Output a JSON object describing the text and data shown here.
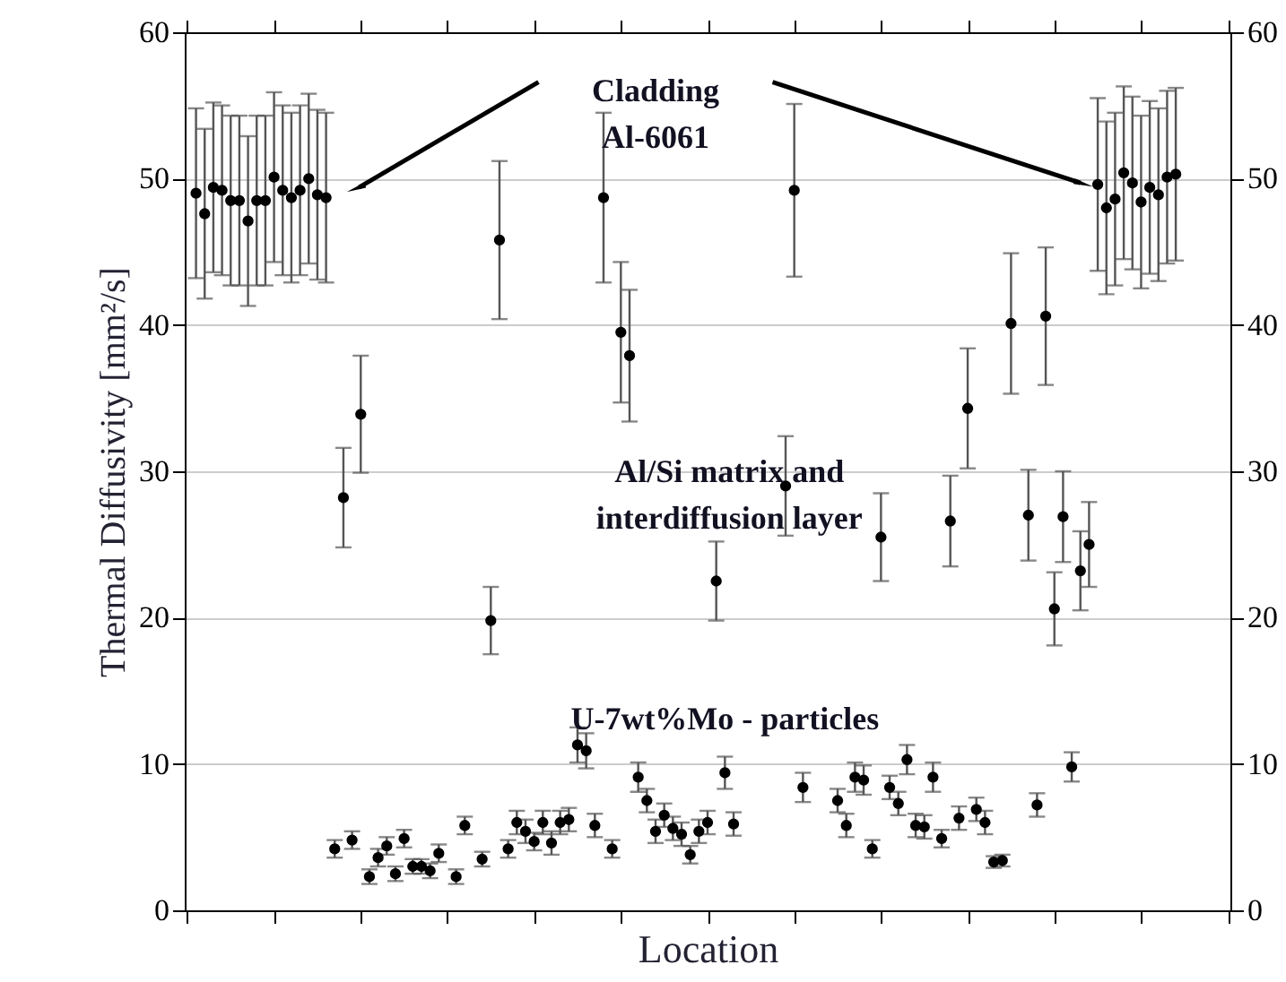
{
  "chart_data": {
    "type": "scatter",
    "xlabel": "Location",
    "ylabel": "Thermal Diffusivity [mm²/s]",
    "categories": [
      null,
      null,
      null,
      null,
      null,
      null,
      null,
      null,
      null,
      null,
      null,
      null,
      null,
      null,
      null,
      null,
      null,
      null,
      null,
      null,
      null,
      null,
      null,
      null,
      null,
      null,
      null,
      null,
      null,
      null,
      null,
      null,
      null,
      null,
      null,
      null,
      null,
      null,
      null,
      null,
      null,
      null,
      null,
      null,
      null,
      null,
      null,
      null,
      null,
      null,
      null,
      null,
      null,
      null,
      null,
      null,
      null,
      null,
      null,
      null,
      null,
      null,
      null,
      null,
      null,
      null,
      null,
      null,
      null,
      null,
      null,
      null,
      null,
      null,
      null,
      null,
      null,
      null,
      null,
      null,
      null,
      null,
      null,
      null,
      null,
      null,
      null,
      null,
      null,
      null,
      null,
      null,
      null,
      null,
      null,
      null,
      null,
      null,
      null,
      null,
      null,
      null,
      null,
      null,
      null,
      null,
      null,
      null,
      null,
      null,
      null,
      null,
      null,
      null,
      null,
      null,
      null,
      null,
      null,
      null,
      null
    ],
    "series": [
      {
        "color": "#000000",
        "values": [
          null,
          49.0,
          47.6,
          49.4,
          49.2,
          48.5,
          48.5,
          47.1,
          48.5,
          48.5,
          50.1,
          49.2,
          48.7,
          49.2,
          50.0,
          48.9,
          48.7,
          4.2,
          28.2,
          4.8,
          33.9,
          2.3,
          3.6,
          4.4,
          2.5,
          4.9,
          3.0,
          3.0,
          2.7,
          3.9,
          null,
          2.3,
          5.8,
          null,
          3.5,
          19.8,
          45.8,
          4.2,
          6.0,
          5.4,
          4.7,
          6.0,
          4.6,
          6.0,
          6.2,
          11.3,
          10.9,
          5.8,
          48.7,
          4.2,
          39.5,
          37.9,
          9.1,
          7.5,
          5.4,
          6.5,
          5.6,
          5.2,
          3.8,
          5.4,
          6.0,
          22.5,
          9.4,
          5.9,
          null,
          null,
          null,
          null,
          null,
          29.0,
          49.2,
          8.4,
          null,
          null,
          null,
          7.5,
          5.8,
          9.1,
          8.9,
          4.2,
          25.5,
          8.4,
          7.3,
          10.3,
          5.8,
          5.7,
          9.1,
          4.9,
          26.6,
          6.3,
          34.3,
          6.9,
          6.0,
          3.3,
          3.4,
          40.1,
          null,
          27.0,
          7.2,
          40.6,
          20.6,
          26.9,
          9.8,
          23.2,
          25.0,
          49.6,
          48.0,
          48.6,
          50.4,
          49.7,
          48.4,
          49.4,
          48.9,
          50.1,
          50.3,
          null,
          null,
          null,
          null,
          null,
          null
        ],
        "errors": [
          null,
          5.8,
          5.8,
          5.8,
          5.8,
          5.8,
          5.8,
          5.8,
          5.8,
          5.8,
          5.8,
          5.8,
          5.8,
          5.8,
          5.8,
          5.8,
          5.8,
          0.6,
          3.4,
          0.6,
          4.0,
          0.5,
          0.6,
          0.6,
          0.5,
          0.6,
          0.5,
          0.5,
          0.5,
          0.6,
          null,
          0.5,
          0.6,
          null,
          0.5,
          2.3,
          5.4,
          0.6,
          0.8,
          0.8,
          0.6,
          0.8,
          0.8,
          0.8,
          0.8,
          1.2,
          1.2,
          0.8,
          5.8,
          0.6,
          4.8,
          4.5,
          1.0,
          0.8,
          0.8,
          0.8,
          0.8,
          0.8,
          0.6,
          0.8,
          0.8,
          2.7,
          1.1,
          0.8,
          null,
          null,
          null,
          null,
          null,
          3.4,
          5.9,
          1.0,
          null,
          null,
          null,
          0.8,
          0.8,
          1.0,
          1.0,
          0.6,
          3.0,
          0.8,
          0.8,
          1.0,
          0.8,
          0.8,
          1.0,
          0.6,
          3.1,
          0.8,
          4.1,
          0.8,
          0.8,
          0.4,
          0.4,
          4.8,
          null,
          3.1,
          0.8,
          4.7,
          2.5,
          3.1,
          1.0,
          2.7,
          2.9,
          5.9,
          5.9,
          5.9,
          5.9,
          5.9,
          5.9,
          5.9,
          5.9,
          5.9,
          5.9,
          null,
          null,
          null,
          null,
          null,
          null
        ]
      }
    ],
    "ylim": [
      0,
      60
    ],
    "yticks": [
      0,
      10,
      20,
      30,
      40,
      50,
      60
    ],
    "y2lim": [
      0,
      60
    ],
    "y2ticks": [
      0,
      10,
      20,
      30,
      40,
      50,
      60
    ],
    "tick_labels": "y",
    "grid": "y",
    "marker": "circle",
    "annotations": [
      "Cladding\nAl-6061",
      "Al/Si matrix and\ninterdiffusion layer",
      "U-7wt%Mo - particles"
    ]
  }
}
